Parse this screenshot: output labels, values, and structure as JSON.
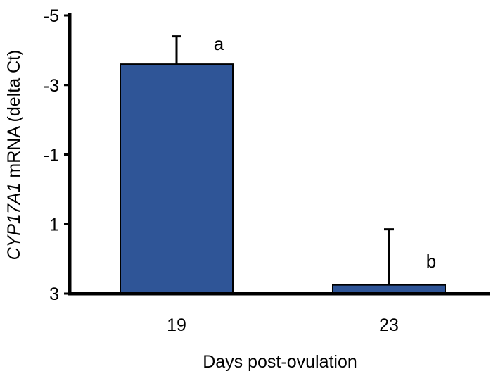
{
  "chart_data": {
    "type": "bar",
    "categories": [
      "19",
      "23"
    ],
    "values": [
      -3.6,
      2.75
    ],
    "error_upper": [
      0.8,
      1.6
    ],
    "significance": [
      "a",
      "b"
    ],
    "xlabel": "Days post-ovulation",
    "ylabel_gene": "CYP17A1",
    "ylabel_rest": " mRNA (delta Ct)",
    "ylim": [
      3,
      -5
    ],
    "y_inverted": true,
    "y_ticks": [
      -5,
      -3,
      -1,
      1,
      3
    ],
    "bar_color": "#2f5597",
    "grid": false
  }
}
